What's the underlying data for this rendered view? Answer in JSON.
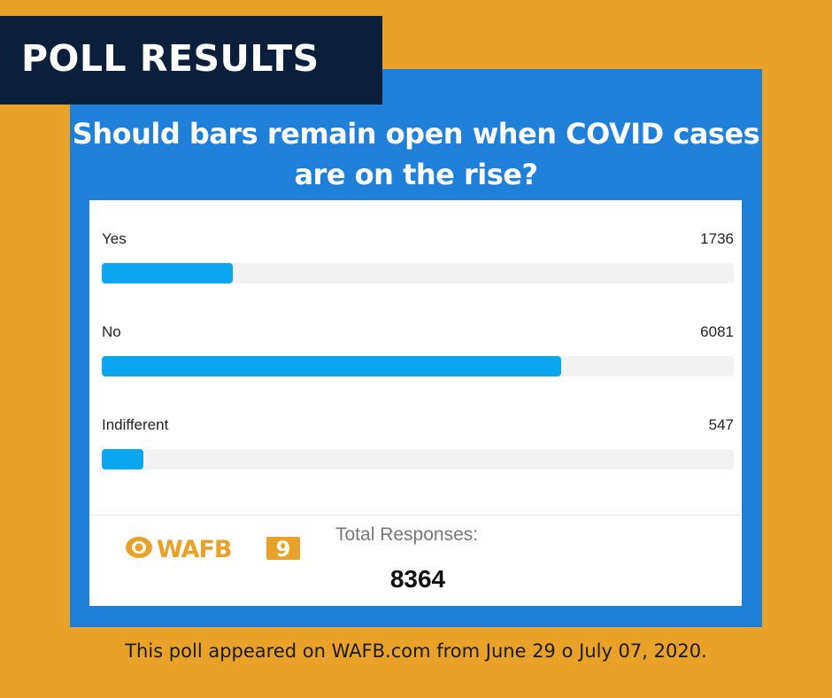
{
  "banner": {
    "title": "POLL RESULTS"
  },
  "brand": {
    "logo_text": "WAFB",
    "channel": "9"
  },
  "footer": {
    "note": "This poll appeared on WAFB.com from June 29 o July 07, 2020."
  },
  "colors": {
    "background": "#E8A22A",
    "banner": "#0C1F3A",
    "panel": "#1E80D9",
    "bar": "#0AA7F0",
    "track": "#F2F2F2",
    "logo": "#E8A22A"
  },
  "chart_data": {
    "type": "bar",
    "orientation": "horizontal",
    "title": "Should bars remain open when COVID cases are on the rise?",
    "categories": [
      "Yes",
      "No",
      "Indifferent"
    ],
    "values": [
      1736,
      6081,
      547
    ],
    "total_label": "Total Responses:",
    "total": 8364
  }
}
